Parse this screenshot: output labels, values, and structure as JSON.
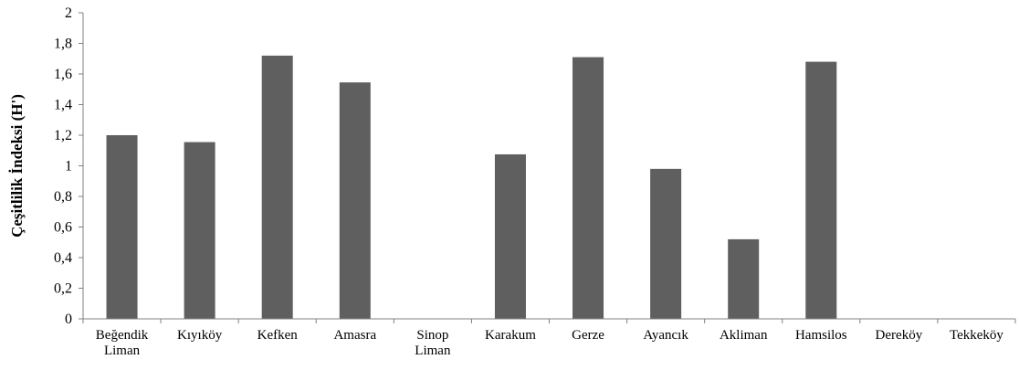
{
  "chart_data": {
    "type": "bar",
    "title": "",
    "xlabel": "",
    "ylabel": "Çeşitlilik İndeksi (H')",
    "ylim": [
      0,
      2
    ],
    "yticks": [
      "0",
      "0,2",
      "0,4",
      "0,6",
      "0,8",
      "1",
      "1,2",
      "1,4",
      "1,6",
      "1,8",
      "2"
    ],
    "categories": [
      [
        "Beğendik",
        "Liman"
      ],
      [
        "Kıyıköy"
      ],
      [
        "Kefken"
      ],
      [
        "Amasra"
      ],
      [
        "Sinop",
        "Liman"
      ],
      [
        "Karakum"
      ],
      [
        "Gerze"
      ],
      [
        "Ayancık"
      ],
      [
        "Akliman"
      ],
      [
        "Hamsilos"
      ],
      [
        "Dereköy"
      ],
      [
        "Tekkeköy"
      ]
    ],
    "values": [
      1.2,
      1.155,
      1.72,
      1.545,
      0,
      1.075,
      1.71,
      0.98,
      0.52,
      1.68,
      0,
      0
    ],
    "grid": false,
    "legend": "none",
    "bar_color": "#5f5f5f",
    "axis_color": "#808080"
  }
}
